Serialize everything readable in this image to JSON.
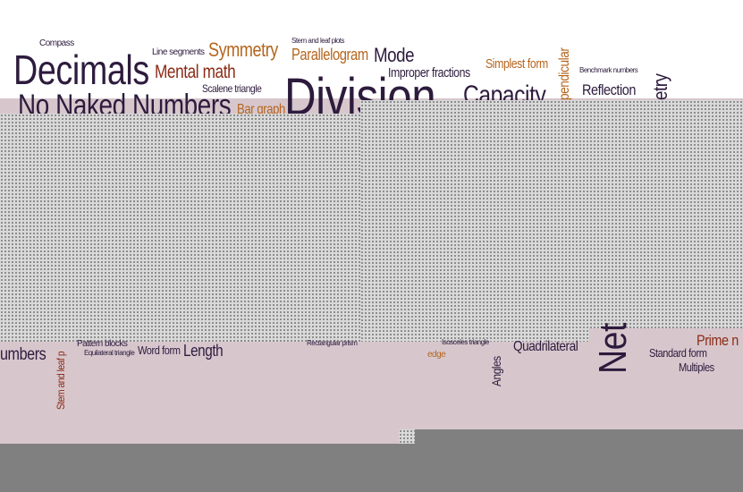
{
  "words": {
    "compass": "Compass",
    "decimals": "Decimals",
    "line_segments": "Line segments",
    "symmetry": "Symmetry",
    "stem_leaf_top": "Stem and leaf plots",
    "parallelogram": "Parallelogram",
    "mode": "Mode",
    "simplest_form": "Simplest form",
    "perpendicular": "pendicular",
    "benchmark_numbers": "Benchmark numbers",
    "geometry": "etry",
    "mental_math": "Mental math",
    "improper_fractions": "Improper fractions",
    "reflection": "Reflection",
    "scalene_triangle": "Scalene triangle",
    "division": "Division",
    "capacity": "Capacity",
    "no_naked_numbers": "No Naked Numbers",
    "bar_graph": "Bar graph",
    "numbers_left": "umbers",
    "stem_leaf_side": "Stem and leaf p",
    "pattern_blocks": "Pattern blocks",
    "equilateral_triangle": "Equilateral triangle",
    "word_form": "Word form",
    "length": "Length",
    "rectangular_prism": "Rectangular prism",
    "isosceles_triangle": "Isosceles triangle",
    "edge": "edge",
    "angles": "Angles",
    "quadrilateral": "Quadrilateral",
    "net": "Net",
    "standard_form": "Standard form",
    "prime": "Prime n",
    "multiples": "Multiples"
  },
  "colors": {
    "dark": "#2d1b3d",
    "orange": "#b5651d",
    "red": "#8b2a14",
    "band": "#d7c7cd",
    "gray": "#808080"
  }
}
